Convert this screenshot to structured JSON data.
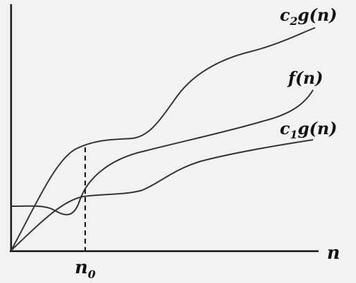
{
  "curves": {
    "upper": {
      "label": "c",
      "sub": "2",
      "rest": "g(n)"
    },
    "middle": {
      "label": "f(n)"
    },
    "lower": {
      "label": "c",
      "sub": "1",
      "rest": "g(n)"
    }
  },
  "axes": {
    "x_label": "n",
    "marker": {
      "label": "n",
      "sub": "0"
    }
  }
}
